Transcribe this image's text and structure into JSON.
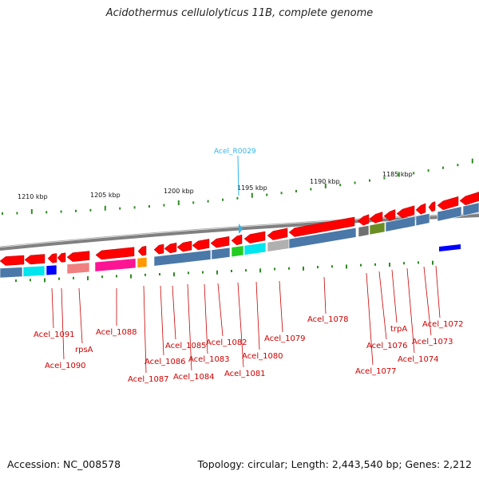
{
  "title": "Acidothermus cellulolyticus 11B, complete genome",
  "footer": {
    "accession": "Accession: NC_008578",
    "summary": "Topology: circular; Length: 2,443,540 bp; Genes: 2,212"
  },
  "scale_labels": [
    "1210 kbp",
    "1205 kbp",
    "1200 kbp",
    "1195 kbp",
    "1190 kbp",
    "1185 kbp"
  ],
  "rna_label": "Acel_R0029",
  "gene_labels": [
    "Acel_1091",
    "Acel_1090",
    "rpsA",
    "Acel_1088",
    "Acel_1087",
    "Acel_1086",
    "Acel_1085",
    "Acel_1084",
    "Acel_1083",
    "Acel_1082",
    "Acel_1081",
    "Acel_1080",
    "Acel_1079",
    "Acel_1078",
    "Acel_1077",
    "Acel_1076",
    "trpA",
    "Acel_1074",
    "Acel_1073",
    "Acel_1072"
  ],
  "colors": {
    "gene_arrow": "#ff0000",
    "label_text": "#cc0000",
    "rna_marker": "#33b5e5",
    "backbone": "#808080",
    "tick": "#2e8b22",
    "cog_blue": "#4a78a8",
    "cog_cyan": "#00e5ee",
    "cog_pink": "#ff1493",
    "cog_salmon": "#f08080",
    "cog_darkblue": "#0000ff",
    "cog_green": "#22cc22",
    "cog_olive": "#6b8e23",
    "cog_gray": "#b0b0b0",
    "cog_orange": "#ff9900",
    "cog_darkgray": "#707070"
  }
}
